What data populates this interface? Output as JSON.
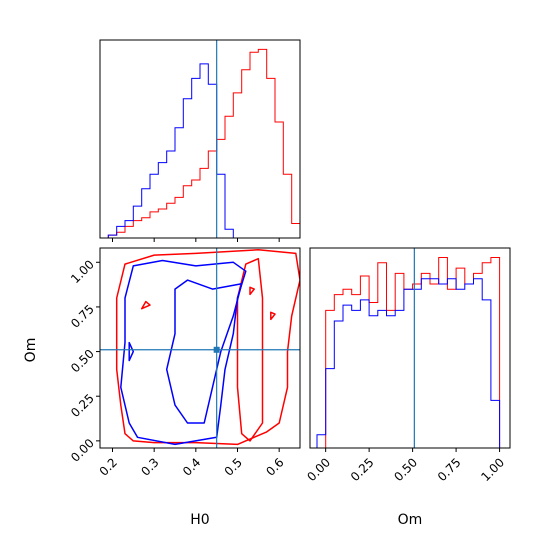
{
  "colors": {
    "red": "#ff0000",
    "blue": "#0000ff",
    "truth": "#1f77b4",
    "frame": "#000000"
  },
  "chart_data": [
    {
      "type": "histogram",
      "panel": "H0 marginal",
      "xlim": [
        0.17,
        0.65
      ],
      "x_edges": [
        0.17,
        0.19,
        0.21,
        0.23,
        0.25,
        0.27,
        0.29,
        0.31,
        0.33,
        0.35,
        0.37,
        0.39,
        0.41,
        0.43,
        0.45,
        0.47,
        0.49,
        0.51,
        0.53,
        0.55,
        0.57,
        0.59,
        0.61,
        0.63,
        0.65
      ],
      "truth": 0.45,
      "series": [
        {
          "color": "red",
          "counts": [
            0,
            1,
            2,
            4,
            6,
            7,
            9,
            10,
            12,
            14,
            18,
            20,
            24,
            30,
            34,
            42,
            50,
            58,
            64,
            65,
            55,
            40,
            22,
            5
          ]
        },
        {
          "color": "blue",
          "counts": [
            0,
            1,
            4,
            6,
            11,
            17,
            22,
            26,
            30,
            38,
            48,
            55,
            60,
            53,
            22,
            3,
            0,
            0,
            0,
            0,
            0,
            0,
            0,
            0
          ]
        }
      ]
    },
    {
      "type": "contour",
      "panel": "H0 vs Om joint",
      "xlabel": "H0",
      "ylabel": "Om",
      "xlim": [
        0.17,
        0.65
      ],
      "ylim": [
        -0.04,
        1.08
      ],
      "xticks": [
        "0.2",
        "0.3",
        "0.4",
        "0.5",
        "0.6"
      ],
      "yticks": [
        "0.00",
        "0.25",
        "0.50",
        "0.75",
        "1.00"
      ],
      "truth": [
        0.45,
        0.51
      ],
      "series": [
        {
          "color": "red",
          "contours": [
            [
              [
                0.23,
                0.04
              ],
              [
                0.22,
                0.2
              ],
              [
                0.21,
                0.4
              ],
              [
                0.21,
                0.6
              ],
              [
                0.21,
                0.8
              ],
              [
                0.23,
                0.99
              ],
              [
                0.3,
                1.04
              ],
              [
                0.4,
                1.05
              ],
              [
                0.55,
                1.07
              ],
              [
                0.64,
                1.05
              ],
              [
                0.65,
                0.9
              ],
              [
                0.63,
                0.7
              ],
              [
                0.62,
                0.5
              ],
              [
                0.62,
                0.3
              ],
              [
                0.6,
                0.1
              ],
              [
                0.57,
                0.05
              ],
              [
                0.5,
                -0.02
              ],
              [
                0.4,
                -0.01
              ],
              [
                0.3,
                -0.01
              ],
              [
                0.25,
                0.0
              ],
              [
                0.23,
                0.04
              ]
            ],
            [
              [
                0.51,
                0.04
              ],
              [
                0.5,
                0.3
              ],
              [
                0.5,
                0.55
              ],
              [
                0.5,
                0.8
              ],
              [
                0.52,
                0.99
              ],
              [
                0.55,
                1.02
              ],
              [
                0.56,
                0.8
              ],
              [
                0.56,
                0.55
              ],
              [
                0.56,
                0.35
              ],
              [
                0.56,
                0.1
              ],
              [
                0.53,
                0.0
              ],
              [
                0.51,
                0.04
              ]
            ],
            [
              [
                0.27,
                0.74
              ],
              [
                0.29,
                0.76
              ],
              [
                0.28,
                0.78
              ],
              [
                0.27,
                0.74
              ]
            ],
            [
              [
                0.53,
                0.82
              ],
              [
                0.54,
                0.85
              ],
              [
                0.53,
                0.86
              ],
              [
                0.53,
                0.82
              ]
            ],
            [
              [
                0.58,
                0.68
              ],
              [
                0.59,
                0.71
              ],
              [
                0.58,
                0.72
              ],
              [
                0.58,
                0.68
              ]
            ]
          ]
        },
        {
          "color": "blue",
          "contours": [
            [
              [
                0.24,
                0.1
              ],
              [
                0.22,
                0.3
              ],
              [
                0.23,
                0.55
              ],
              [
                0.23,
                0.8
              ],
              [
                0.25,
                0.98
              ],
              [
                0.32,
                1.01
              ],
              [
                0.4,
                0.98
              ],
              [
                0.49,
                1.0
              ],
              [
                0.52,
                0.95
              ],
              [
                0.5,
                0.8
              ],
              [
                0.49,
                0.6
              ],
              [
                0.47,
                0.4
              ],
              [
                0.46,
                0.2
              ],
              [
                0.45,
                0.02
              ],
              [
                0.35,
                -0.02
              ],
              [
                0.26,
                0.02
              ],
              [
                0.24,
                0.1
              ]
            ],
            [
              [
                0.33,
                0.4
              ],
              [
                0.35,
                0.2
              ],
              [
                0.38,
                0.1
              ],
              [
                0.42,
                0.1
              ],
              [
                0.44,
                0.3
              ],
              [
                0.46,
                0.5
              ],
              [
                0.49,
                0.7
              ],
              [
                0.51,
                0.88
              ],
              [
                0.44,
                0.85
              ],
              [
                0.38,
                0.9
              ],
              [
                0.35,
                0.85
              ],
              [
                0.35,
                0.6
              ],
              [
                0.33,
                0.4
              ]
            ],
            [
              [
                0.24,
                0.45
              ],
              [
                0.25,
                0.5
              ],
              [
                0.24,
                0.55
              ],
              [
                0.24,
                0.45
              ]
            ]
          ]
        }
      ]
    },
    {
      "type": "histogram",
      "panel": "Om marginal",
      "xlabel": "Om",
      "xlim": [
        -0.09,
        1.06
      ],
      "xticks": [
        "0.00",
        "0.25",
        "0.50",
        "0.75",
        "1.00"
      ],
      "x_edges": [
        -0.05,
        0.0,
        0.05,
        0.1,
        0.15,
        0.2,
        0.25,
        0.3,
        0.35,
        0.4,
        0.45,
        0.5,
        0.55,
        0.6,
        0.65,
        0.7,
        0.75,
        0.8,
        0.85,
        0.9,
        0.95,
        1.0,
        1.05
      ],
      "truth": 0.51,
      "series": [
        {
          "color": "red",
          "counts": [
            0,
            52,
            58,
            60,
            58,
            65,
            55,
            70,
            52,
            66,
            60,
            62,
            66,
            62,
            72,
            60,
            68,
            62,
            66,
            70,
            72,
            0
          ]
        },
        {
          "color": "blue",
          "counts": [
            5,
            30,
            48,
            54,
            52,
            56,
            50,
            52,
            50,
            52,
            60,
            60,
            64,
            64,
            62,
            64,
            60,
            62,
            64,
            56,
            18,
            0
          ]
        }
      ]
    }
  ]
}
